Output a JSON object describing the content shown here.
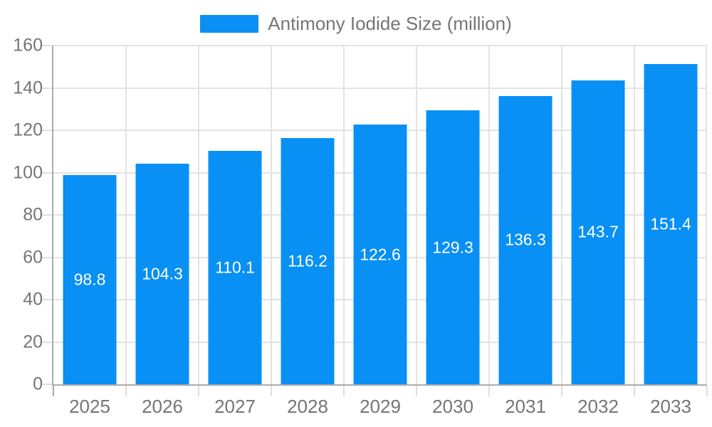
{
  "legend": {
    "label": "Antimony Iodide Size (million)",
    "swatch_color": "#0990f5"
  },
  "chart_data": {
    "type": "bar",
    "title": "Antimony Iodide Size (million)",
    "series_name": "Antimony Iodide Size (million)",
    "categories": [
      "2025",
      "2026",
      "2027",
      "2028",
      "2029",
      "2030",
      "2031",
      "2032",
      "2033"
    ],
    "values": [
      98.8,
      104.3,
      110.1,
      116.2,
      122.6,
      129.3,
      136.3,
      143.7,
      151.4
    ],
    "value_labels": [
      "98.8",
      "104.3",
      "110.1",
      "116.2",
      "122.6",
      "129.3",
      "136.3",
      "143.7",
      "151.4"
    ],
    "xlabel": "",
    "ylabel": "",
    "ylim": [
      0,
      160
    ],
    "yticks": [
      0,
      20,
      40,
      60,
      80,
      100,
      120,
      140,
      160
    ],
    "grid": true,
    "legend_position": "top-center",
    "bar_color": "#0990f5",
    "value_label_color": "#ffffff",
    "axis_color": "#ababab",
    "gridline_color": "#e3e3e3",
    "tick_color": "#dedede",
    "tick_label_color": "#757575",
    "background_color": "#ffffff"
  }
}
